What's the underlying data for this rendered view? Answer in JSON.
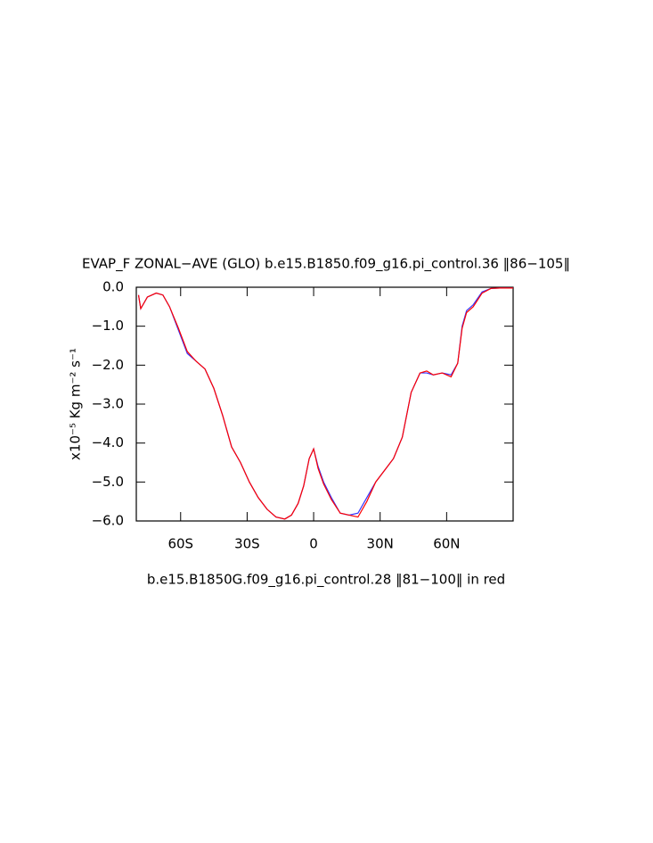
{
  "chart_data": {
    "type": "line",
    "title": "EVAP_F ZONAL−AVE (GLO) b.e15.B1850.f09_g16.pi_control.36 ‖86−105‖",
    "y_label": "x10⁻⁵ Kg m⁻² s⁻¹",
    "x_label": "b.e15.B1850G.f09_g16.pi_control.28 ‖81−100‖ in red",
    "x": [
      -79,
      -78,
      -75,
      -71,
      -68,
      -65,
      -61,
      -57,
      -53,
      -49,
      -45,
      -41,
      -37,
      -33,
      -29,
      -25,
      -21,
      -17,
      -13,
      -10,
      -7,
      -4.5,
      -2,
      0,
      2,
      4.5,
      8,
      12,
      16,
      20,
      24,
      28,
      32,
      36,
      40,
      44,
      48,
      51,
      54,
      58,
      62,
      65,
      67,
      69,
      72,
      76,
      80,
      84,
      90
    ],
    "series": [
      {
        "color": "#3333ff",
        "values": [
          -0.2,
          -0.55,
          -0.25,
          -0.15,
          -0.2,
          -0.5,
          -1.1,
          -1.7,
          -1.9,
          -2.1,
          -2.6,
          -3.3,
          -4.1,
          -4.5,
          -5.0,
          -5.4,
          -5.7,
          -5.9,
          -5.95,
          -5.85,
          -5.55,
          -5.1,
          -4.4,
          -4.15,
          -4.6,
          -5.0,
          -5.4,
          -5.8,
          -5.85,
          -5.8,
          -5.4,
          -5.0,
          -4.7,
          -4.4,
          -3.85,
          -2.7,
          -2.2,
          -2.2,
          -2.25,
          -2.2,
          -2.25,
          -1.95,
          -1.0,
          -0.6,
          -0.45,
          -0.12,
          -0.03,
          -0.02,
          -0.02
        ]
      },
      {
        "color": "#ff0000",
        "values": [
          -0.2,
          -0.55,
          -0.25,
          -0.15,
          -0.2,
          -0.5,
          -1.05,
          -1.65,
          -1.9,
          -2.1,
          -2.6,
          -3.3,
          -4.1,
          -4.5,
          -5.0,
          -5.4,
          -5.7,
          -5.9,
          -5.95,
          -5.85,
          -5.55,
          -5.1,
          -4.4,
          -4.15,
          -4.65,
          -5.05,
          -5.45,
          -5.8,
          -5.85,
          -5.9,
          -5.5,
          -5.0,
          -4.7,
          -4.4,
          -3.85,
          -2.7,
          -2.2,
          -2.15,
          -2.25,
          -2.2,
          -2.3,
          -1.95,
          -1.05,
          -0.65,
          -0.5,
          -0.15,
          -0.03,
          -0.02,
          -0.02
        ]
      }
    ],
    "xlim": [
      -80,
      90
    ],
    "ylim": [
      -6,
      0
    ],
    "xticks": [
      {
        "value": -60,
        "label": "60S"
      },
      {
        "value": -30,
        "label": "30S"
      },
      0,
      {
        "value": 30,
        "label": "30N"
      },
      {
        "value": 60,
        "label": "60N"
      }
    ],
    "yticks": [
      {
        "value": 0,
        "label": "0.0"
      },
      {
        "value": -1,
        "label": "−1.0"
      },
      {
        "value": -2,
        "label": "−2.0"
      },
      {
        "value": -3,
        "label": "−3.0"
      },
      {
        "value": -4,
        "label": "−4.0"
      },
      {
        "value": -5,
        "label": "−5.0"
      },
      {
        "value": -6,
        "label": "−6.0"
      }
    ],
    "grid": false
  }
}
